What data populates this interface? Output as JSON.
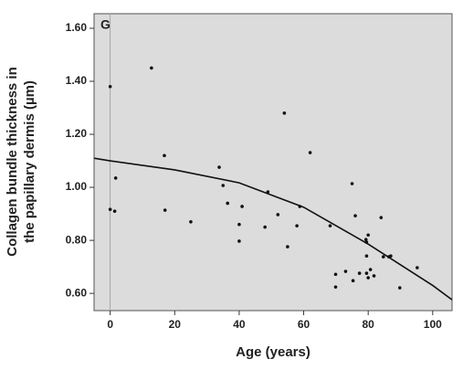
{
  "chart_data": {
    "type": "scatter",
    "annotation": "G",
    "x_label": "Age (years)",
    "y_label": [
      "Collagen bundle thickness in",
      "the papillary dermis (µm)"
    ],
    "xlim": [
      -5,
      106
    ],
    "ylim": [
      0.535,
      1.655
    ],
    "xticks": [
      0,
      20,
      40,
      60,
      80,
      100
    ],
    "yticks": [
      {
        "value": 0.6,
        "label": "0.60"
      },
      {
        "value": 0.8,
        "label": "0.80"
      },
      {
        "value": 1.0,
        "label": "1.00"
      },
      {
        "value": 1.2,
        "label": "1.20"
      },
      {
        "value": 1.4,
        "label": "1.40"
      },
      {
        "value": 1.6,
        "label": "1.60"
      }
    ],
    "background": "#dcdcdc",
    "color": "#111111",
    "points": {
      "x": [
        0,
        0,
        1.4,
        1.7,
        12.8,
        16.8,
        17,
        25,
        33.8,
        35,
        36.4,
        40,
        40,
        40.9,
        48.9,
        48,
        52,
        54,
        55,
        57.9,
        58.8,
        62,
        68.2,
        69.9,
        69.9,
        73,
        75.3,
        75,
        76,
        77.3,
        79.3,
        79.5,
        80,
        79.5,
        79.5,
        80,
        80.7,
        81.8,
        84,
        84.7,
        86.4,
        87,
        89.8,
        95.2
      ],
      "values": [
        1.38,
        0.917,
        0.91,
        1.035,
        1.45,
        1.12,
        0.914,
        0.87,
        1.076,
        1.007,
        0.94,
        0.86,
        0.797,
        0.928,
        0.983,
        0.85,
        0.897,
        1.28,
        0.776,
        0.855,
        0.928,
        1.131,
        0.855,
        0.672,
        0.624,
        0.683,
        0.648,
        1.014,
        0.893,
        0.676,
        0.803,
        0.793,
        0.82,
        0.741,
        0.676,
        0.659,
        0.69,
        0.666,
        0.886,
        0.738,
        0.738,
        0.741,
        0.621,
        0.697
      ]
    },
    "curve": {
      "x": [
        -5,
        0,
        20,
        40,
        60,
        80,
        100,
        106
      ],
      "values": [
        1.11,
        1.1,
        1.066,
        1.017,
        0.925,
        0.786,
        0.63,
        0.576
      ]
    }
  }
}
